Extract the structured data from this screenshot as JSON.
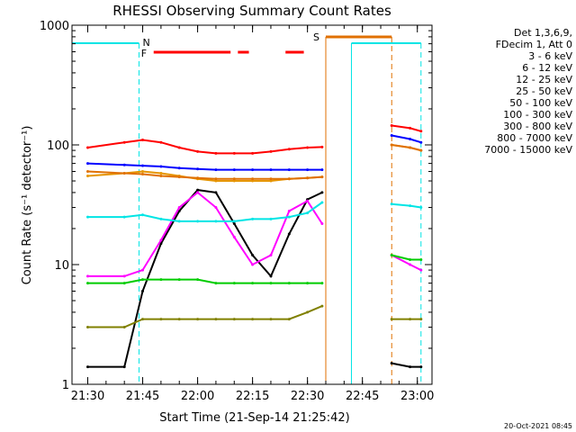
{
  "chart_data": {
    "type": "line",
    "title": "RHESSI Observing Summary Count Rates",
    "xlabel": "Start Time (21-Sep-14 21:25:42)",
    "ylabel": "Count Rate (s⁻¹ detector⁻¹)",
    "y_scale": "log",
    "ylim": [
      1,
      1000
    ],
    "xlim": [
      "21:25:42",
      "23:04:00"
    ],
    "x_tick_labels": [
      "21:30",
      "21:45",
      "22:00",
      "22:15",
      "22:30",
      "22:45",
      "23:00"
    ],
    "y_tick_labels": [
      "1",
      "10",
      "100",
      "1000"
    ],
    "legend_header": [
      "Det 1,3,6,9,",
      "FDecim 1, Att 0"
    ],
    "legend_position": "right",
    "footer_date": "20-Oct-2021 08:45",
    "flags": {
      "night_label": "N",
      "flare_label": "F",
      "saa_label": "S",
      "night_intervals": [
        [
          "21:25:42",
          "21:44:00"
        ],
        [
          "22:42:00",
          "23:01:00"
        ]
      ],
      "flare_intervals": [
        [
          "21:48:00",
          "22:09:00"
        ],
        [
          "22:11:00",
          "22:14:00"
        ],
        [
          "22:24:00",
          "22:29:00"
        ]
      ],
      "saa_interval": [
        "22:35:00",
        "22:53:00"
      ]
    },
    "gaps": [
      [
        "22:35:00",
        "22:53:00"
      ]
    ],
    "series": [
      {
        "name": "3 - 6 keV",
        "color": "#000000",
        "x": [
          "21:30",
          "21:40",
          "21:45",
          "21:50",
          "21:55",
          "22:00",
          "22:05",
          "22:10",
          "22:15",
          "22:20",
          "22:25",
          "22:30",
          "22:34",
          "22:53",
          "22:58",
          "23:01"
        ],
        "y": [
          1.4,
          1.4,
          6.0,
          15,
          28,
          42,
          40,
          22,
          12,
          8,
          18,
          35,
          40,
          1.5,
          1.4,
          1.4
        ]
      },
      {
        "name": "6 - 12 keV",
        "color": "#ff00ff",
        "x": [
          "21:30",
          "21:40",
          "21:45",
          "21:50",
          "21:55",
          "22:00",
          "22:05",
          "22:10",
          "22:15",
          "22:20",
          "22:25",
          "22:30",
          "22:34",
          "22:53",
          "22:58",
          "23:01"
        ],
        "y": [
          8,
          8,
          9,
          16,
          30,
          40,
          30,
          17,
          10,
          12,
          28,
          34,
          22,
          12,
          10,
          9
        ]
      },
      {
        "name": "12 - 25 keV",
        "color": "#00cc00",
        "x": [
          "21:30",
          "21:40",
          "21:45",
          "21:50",
          "21:55",
          "22:00",
          "22:05",
          "22:10",
          "22:15",
          "22:20",
          "22:25",
          "22:30",
          "22:34",
          "22:53",
          "22:58",
          "23:01"
        ],
        "y": [
          7,
          7,
          7.5,
          7.5,
          7.5,
          7.5,
          7,
          7,
          7,
          7,
          7,
          7,
          7,
          12,
          11,
          11
        ]
      },
      {
        "name": "25 - 50 keV",
        "color": "#00e5e5",
        "x": [
          "21:30",
          "21:40",
          "21:45",
          "21:50",
          "21:55",
          "22:00",
          "22:05",
          "22:10",
          "22:15",
          "22:20",
          "22:25",
          "22:30",
          "22:34",
          "22:53",
          "22:58",
          "23:01"
        ],
        "y": [
          25,
          25,
          26,
          24,
          23,
          23,
          23,
          23,
          24,
          24,
          25,
          27,
          33,
          32,
          31,
          30
        ]
      },
      {
        "name": "50 - 100 keV",
        "color": "#e69500",
        "x": [
          "21:30",
          "21:40",
          "21:45",
          "21:50",
          "21:55",
          "22:00",
          "22:05",
          "22:10",
          "22:15",
          "22:20",
          "22:25",
          "22:30",
          "22:34",
          "22:53",
          "22:58",
          "23:01"
        ],
        "y": [
          55,
          58,
          60,
          58,
          55,
          52,
          50,
          50,
          50,
          50,
          52,
          53,
          54,
          100,
          95,
          90
        ]
      },
      {
        "name": "100 - 300 keV",
        "color": "#ff0000",
        "x": [
          "21:30",
          "21:40",
          "21:45",
          "21:50",
          "21:55",
          "22:00",
          "22:05",
          "22:10",
          "22:15",
          "22:20",
          "22:25",
          "22:30",
          "22:34",
          "22:53",
          "22:58",
          "23:01"
        ],
        "y": [
          95,
          105,
          110,
          105,
          95,
          88,
          85,
          85,
          85,
          88,
          92,
          95,
          96,
          145,
          138,
          130
        ]
      },
      {
        "name": "300 - 800 keV",
        "color": "#0000ff",
        "x": [
          "21:30",
          "21:40",
          "21:45",
          "21:50",
          "21:55",
          "22:00",
          "22:05",
          "22:10",
          "22:15",
          "22:20",
          "22:25",
          "22:30",
          "22:34",
          "22:53",
          "22:58",
          "23:01"
        ],
        "y": [
          70,
          68,
          67,
          66,
          64,
          63,
          62,
          62,
          62,
          62,
          62,
          62,
          62,
          120,
          112,
          105
        ]
      },
      {
        "name": "800 - 7000 keV",
        "color": "#e07000",
        "x": [
          "21:30",
          "21:40",
          "21:45",
          "21:50",
          "21:55",
          "22:00",
          "22:05",
          "22:10",
          "22:15",
          "22:20",
          "22:25",
          "22:30",
          "22:34",
          "22:53",
          "22:58",
          "23:01"
        ],
        "y": [
          60,
          58,
          57,
          55,
          54,
          53,
          52,
          52,
          52,
          52,
          52,
          53,
          54,
          100,
          95,
          90
        ]
      },
      {
        "name": "7000 - 15000 keV",
        "color": "#808000",
        "x": [
          "21:30",
          "21:40",
          "21:45",
          "21:50",
          "21:55",
          "22:00",
          "22:05",
          "22:10",
          "22:15",
          "22:20",
          "22:25",
          "22:30",
          "22:34",
          "22:53",
          "22:58",
          "23:01"
        ],
        "y": [
          3,
          3,
          3.5,
          3.5,
          3.5,
          3.5,
          3.5,
          3.5,
          3.5,
          3.5,
          3.5,
          4,
          4.5,
          3.5,
          3.5,
          3.5
        ]
      }
    ]
  }
}
